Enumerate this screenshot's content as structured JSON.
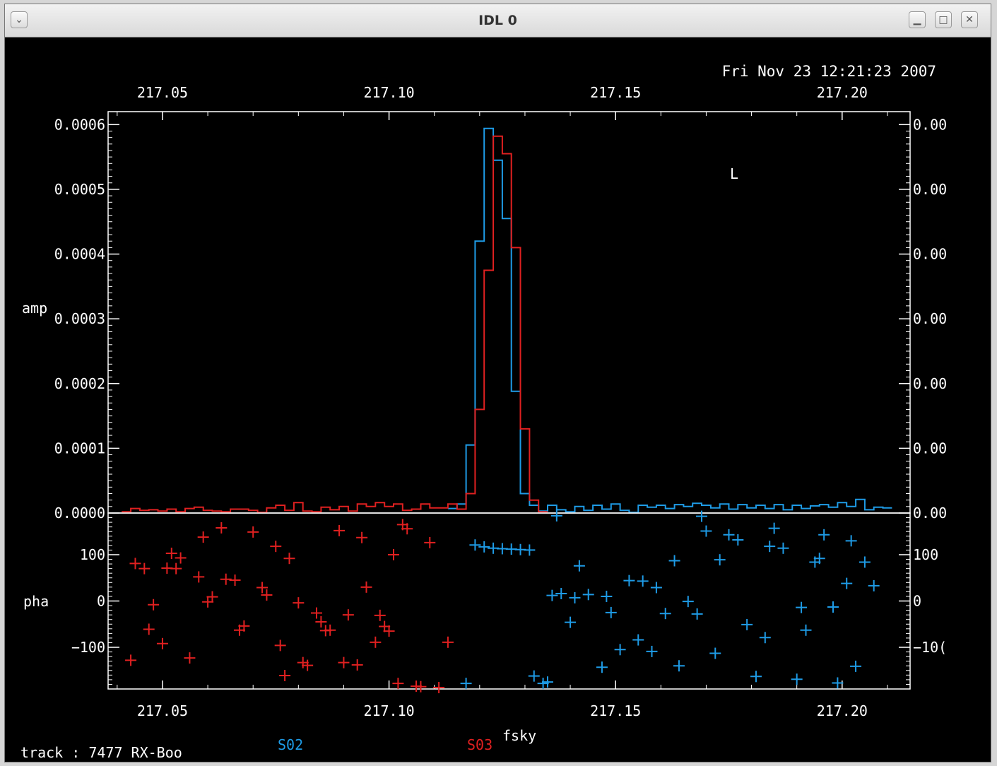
{
  "window": {
    "title": "IDL 0"
  },
  "buttons": {
    "menu_glyph": "⌄",
    "minimize_glyph": "▁",
    "maximize_glyph": "□",
    "close_glyph": "✕"
  },
  "timestamp": "Fri Nov 23 12:21:23 2007",
  "marker_text": "L",
  "footer": {
    "track": "track : 7477 RX-Boo"
  },
  "colors": {
    "s02": "#1e9be6",
    "s03": "#e02020",
    "axis": "#ffffff",
    "background": "#000000"
  },
  "chart_data": [
    {
      "type": "line",
      "style": "step",
      "xlabel": "fsky",
      "ylabel": "amp",
      "xlim": [
        217.038,
        217.215
      ],
      "ylim": [
        0,
        0.00062
      ],
      "x_ticks": [
        "217.05",
        "217.10",
        "217.15",
        "217.20"
      ],
      "y_ticks": [
        "0.0000",
        "0.0001",
        "0.0002",
        "0.0003",
        "0.0004",
        "0.0005",
        "0.0006"
      ],
      "right_y_ticks": [
        "0.00",
        "0.00",
        "0.00",
        "0.00",
        "0.00",
        "0.00",
        "0.00"
      ],
      "series": [
        {
          "name": "S02",
          "x": [
            217.114,
            217.116,
            217.118,
            217.12,
            217.122,
            217.124,
            217.126,
            217.128,
            217.13,
            217.132,
            217.134,
            217.136,
            217.138,
            217.14,
            217.142,
            217.144,
            217.146,
            217.148,
            217.15,
            217.152,
            217.154,
            217.156,
            217.158,
            217.16,
            217.162,
            217.164,
            217.166,
            217.168,
            217.17,
            217.172,
            217.174,
            217.176,
            217.178,
            217.18,
            217.182,
            217.184,
            217.186,
            217.188,
            217.19,
            217.192,
            217.194,
            217.196,
            217.198,
            217.2,
            217.202,
            217.204,
            217.206,
            217.208,
            217.21
          ],
          "y": [
            7e-06,
            1.4e-05,
            0.000105,
            0.00042,
            0.000594,
            0.000545,
            0.000455,
            0.000188,
            3e-05,
            1.2e-05,
            3e-06,
            1.2e-05,
            5e-06,
            2e-06,
            1e-05,
            4e-06,
            1.2e-05,
            6e-06,
            1.4e-05,
            4e-06,
            1e-06,
            1.2e-05,
            9e-06,
            1.2e-05,
            7e-06,
            1.3e-05,
            1e-05,
            1.5e-05,
            1.2e-05,
            8e-06,
            1.4e-05,
            6e-06,
            1.3e-05,
            8e-06,
            1.2e-05,
            7e-06,
            1.3e-05,
            5e-06,
            1.2e-05,
            7e-06,
            1.1e-05,
            1.3e-05,
            9e-06,
            1.6e-05,
            1e-05,
            2.1e-05,
            5e-06,
            9e-06,
            8e-06
          ]
        },
        {
          "name": "S03",
          "x": [
            217.042,
            217.044,
            217.046,
            217.048,
            217.05,
            217.052,
            217.054,
            217.056,
            217.058,
            217.06,
            217.062,
            217.064,
            217.066,
            217.068,
            217.07,
            217.072,
            217.074,
            217.076,
            217.078,
            217.08,
            217.082,
            217.084,
            217.086,
            217.088,
            217.09,
            217.092,
            217.094,
            217.096,
            217.098,
            217.1,
            217.102,
            217.104,
            217.106,
            217.108,
            217.11,
            217.112,
            217.114,
            217.116,
            217.118,
            217.12,
            217.122,
            217.124,
            217.126,
            217.128,
            217.13,
            217.132,
            217.134
          ],
          "y": [
            2e-06,
            7e-06,
            4e-06,
            5e-06,
            3e-06,
            6e-06,
            2e-06,
            7e-06,
            9e-06,
            4e-06,
            3e-06,
            2e-06,
            6e-06,
            6e-06,
            4e-06,
            1e-06,
            8e-06,
            1.2e-05,
            4e-06,
            1.6e-05,
            3e-06,
            2e-06,
            9e-06,
            5e-06,
            1e-05,
            3e-06,
            1.4e-05,
            1e-05,
            1.6e-05,
            1e-05,
            1.4e-05,
            4e-06,
            6e-06,
            1.4e-05,
            8e-06,
            8e-06,
            1.4e-05,
            6e-06,
            3e-05,
            0.00016,
            0.000375,
            0.000582,
            0.000555,
            0.00041,
            0.00013,
            2e-05,
            2e-06
          ]
        }
      ]
    },
    {
      "type": "scatter",
      "xlabel": "fsky",
      "ylabel": "pha",
      "xlim": [
        217.038,
        217.215
      ],
      "ylim": [
        -190,
        190
      ],
      "x_ticks": [
        "217.05",
        "217.10",
        "217.15",
        "217.20"
      ],
      "y_ticks": [
        "−100",
        "0",
        "100"
      ],
      "right_y_ticks": [
        "−10(",
        "0",
        "100"
      ],
      "series": [
        {
          "name": "S02",
          "points": [
            [
              217.117,
              -178
            ],
            [
              217.119,
              121
            ],
            [
              217.121,
              117
            ],
            [
              217.123,
              114
            ],
            [
              217.125,
              113
            ],
            [
              217.127,
              112
            ],
            [
              217.129,
              111
            ],
            [
              217.131,
              110
            ],
            [
              217.132,
              -162
            ],
            [
              217.134,
              -178
            ],
            [
              217.135,
              -175
            ],
            [
              217.136,
              12
            ],
            [
              217.137,
              184
            ],
            [
              217.138,
              16
            ],
            [
              217.14,
              -46
            ],
            [
              217.141,
              7
            ],
            [
              217.142,
              76
            ],
            [
              217.144,
              14
            ],
            [
              217.147,
              -143
            ],
            [
              217.148,
              10
            ],
            [
              217.149,
              -25
            ],
            [
              217.151,
              -105
            ],
            [
              217.153,
              44
            ],
            [
              217.155,
              -84
            ],
            [
              217.156,
              43
            ],
            [
              217.158,
              -109
            ],
            [
              217.159,
              29
            ],
            [
              217.161,
              -27
            ],
            [
              217.163,
              87
            ],
            [
              217.164,
              -140
            ],
            [
              217.166,
              -1
            ],
            [
              217.168,
              -28
            ],
            [
              217.169,
              183
            ],
            [
              217.17,
              151
            ],
            [
              217.172,
              -113
            ],
            [
              217.173,
              89
            ],
            [
              217.175,
              143
            ],
            [
              217.177,
              132
            ],
            [
              217.179,
              -51
            ],
            [
              217.181,
              -163
            ],
            [
              217.183,
              -79
            ],
            [
              217.184,
              118
            ],
            [
              217.185,
              157
            ],
            [
              217.187,
              114
            ],
            [
              217.19,
              -169
            ],
            [
              217.191,
              -14
            ],
            [
              217.192,
              -63
            ],
            [
              217.194,
              84
            ],
            [
              217.195,
              92
            ],
            [
              217.196,
              143
            ],
            [
              217.198,
              -13
            ],
            [
              217.199,
              -177
            ],
            [
              217.201,
              38
            ],
            [
              217.202,
              130
            ],
            [
              217.203,
              -141
            ],
            [
              217.205,
              84
            ],
            [
              217.207,
              33
            ]
          ]
        },
        {
          "name": "S03",
          "points": [
            [
              217.043,
              -128
            ],
            [
              217.044,
              81
            ],
            [
              217.046,
              70
            ],
            [
              217.047,
              -61
            ],
            [
              217.048,
              -8
            ],
            [
              217.05,
              -92
            ],
            [
              217.051,
              71
            ],
            [
              217.052,
              103
            ],
            [
              217.053,
              70
            ],
            [
              217.054,
              93
            ],
            [
              217.056,
              -123
            ],
            [
              217.058,
              52
            ],
            [
              217.059,
              138
            ],
            [
              217.06,
              -2
            ],
            [
              217.061,
              9
            ],
            [
              217.063,
              158
            ],
            [
              217.064,
              47
            ],
            [
              217.066,
              45
            ],
            [
              217.067,
              -63
            ],
            [
              217.068,
              -54
            ],
            [
              217.07,
              149
            ],
            [
              217.072,
              29
            ],
            [
              217.073,
              13
            ],
            [
              217.075,
              118
            ],
            [
              217.076,
              -96
            ],
            [
              217.077,
              -161
            ],
            [
              217.078,
              92
            ],
            [
              217.08,
              -4
            ],
            [
              217.081,
              -133
            ],
            [
              217.082,
              -139
            ],
            [
              217.084,
              -26
            ],
            [
              217.085,
              -45
            ],
            [
              217.086,
              -64
            ],
            [
              217.087,
              -63
            ],
            [
              217.089,
              152
            ],
            [
              217.09,
              -133
            ],
            [
              217.091,
              -30
            ],
            [
              217.093,
              -138
            ],
            [
              217.094,
              137
            ],
            [
              217.095,
              30
            ],
            [
              217.097,
              -89
            ],
            [
              217.098,
              -31
            ],
            [
              217.099,
              -55
            ],
            [
              217.1,
              -65
            ],
            [
              217.101,
              100
            ],
            [
              217.102,
              -178
            ],
            [
              217.103,
              165
            ],
            [
              217.104,
              156
            ],
            [
              217.106,
              -184
            ],
            [
              217.107,
              -185
            ],
            [
              217.109,
              126
            ],
            [
              217.111,
              -187
            ],
            [
              217.113,
              -89
            ]
          ]
        }
      ]
    }
  ]
}
